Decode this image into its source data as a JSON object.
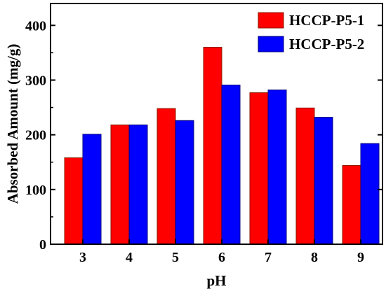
{
  "chart_data": {
    "type": "bar",
    "categories": [
      "3",
      "4",
      "5",
      "6",
      "7",
      "8",
      "9"
    ],
    "series": [
      {
        "name": "HCCP-P5-1",
        "values": [
          158,
          218,
          248,
          360,
          277,
          249,
          144
        ],
        "color": "#ff0000",
        "edge_color": "#8b1a00"
      },
      {
        "name": "HCCP-P5-2",
        "values": [
          201,
          218,
          226,
          291,
          282,
          232,
          184
        ],
        "color": "#0000ff",
        "edge_color": "#00007f"
      }
    ],
    "xlabel": "pH",
    "ylabel": "Absorbed Amount (mg/g)",
    "ylim": [
      0,
      440
    ],
    "yticks": [
      0,
      100,
      200,
      300,
      400
    ],
    "grid": false,
    "legend": "top-right"
  }
}
